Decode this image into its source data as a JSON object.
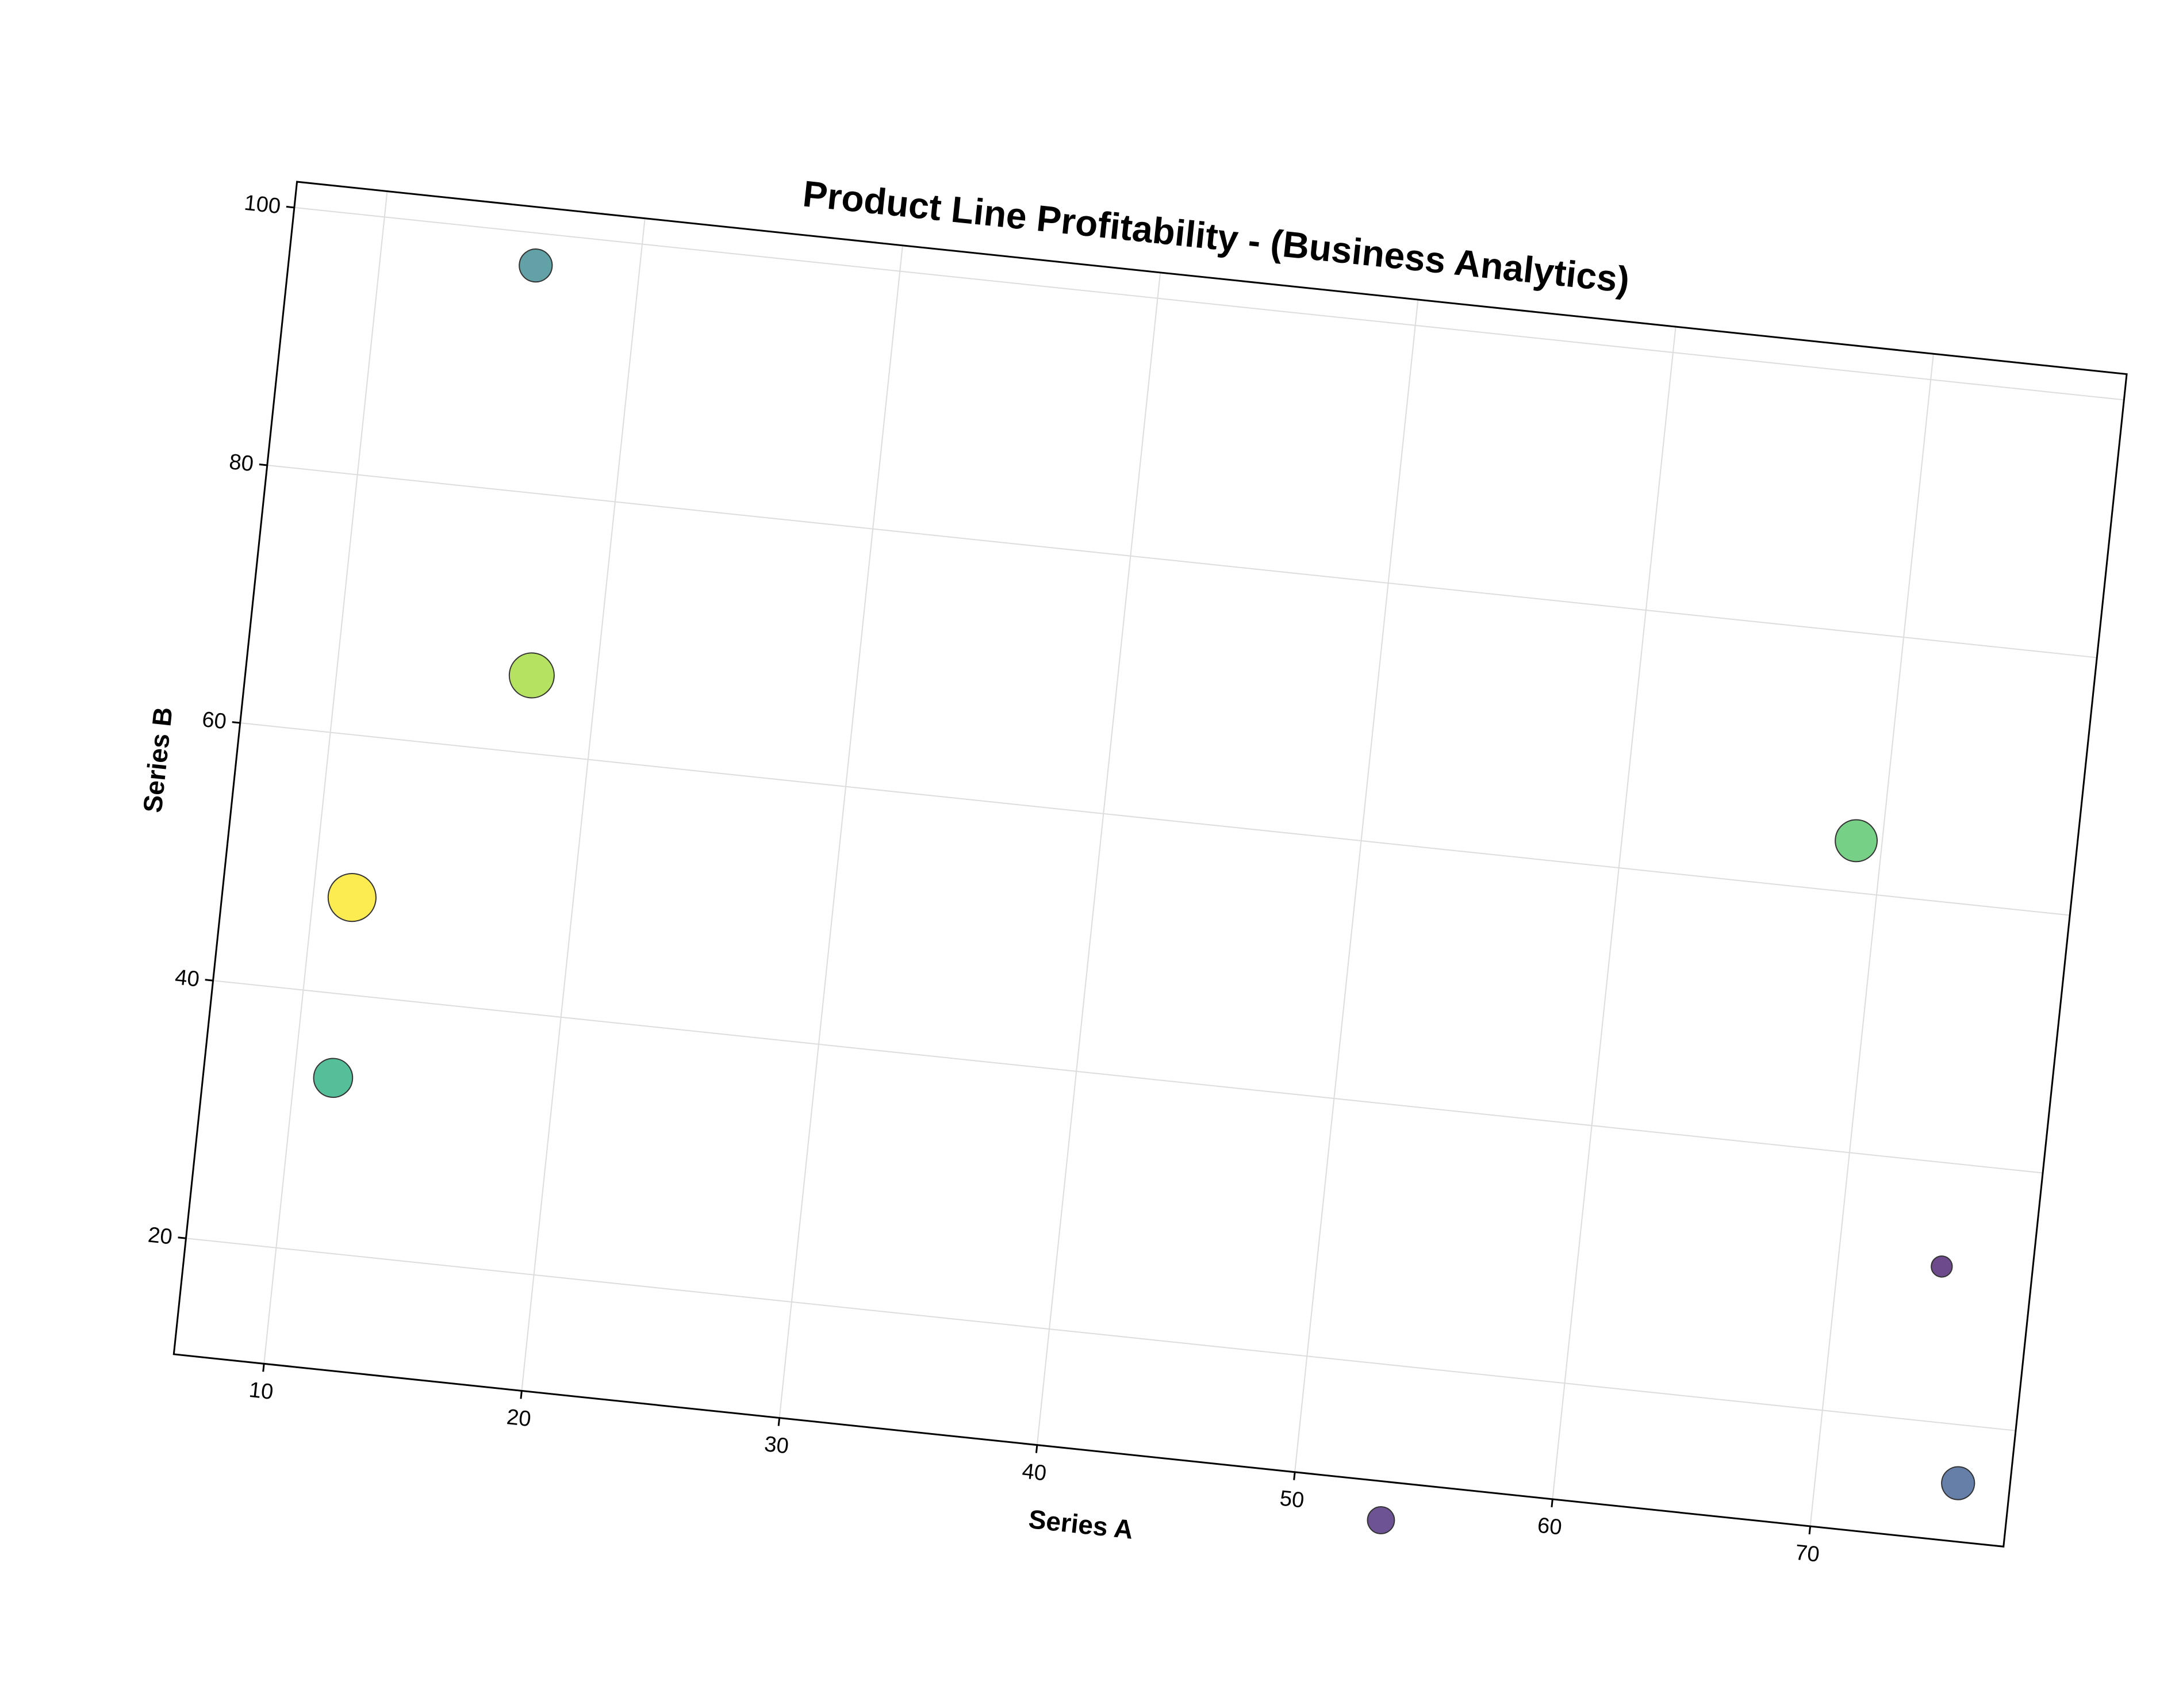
{
  "chart_data": {
    "type": "scatter",
    "title": "Product Line Profitability - (Business Analytics)",
    "xlabel": "Series A",
    "ylabel": "Series B",
    "xlim": [
      6.5,
      77.5
    ],
    "ylim": [
      11,
      102
    ],
    "xticks": [
      10,
      20,
      30,
      40,
      50,
      60,
      70
    ],
    "yticks": [
      20,
      40,
      60,
      80,
      100
    ],
    "grid": true,
    "points": [
      {
        "x": 16,
        "y": 97.5,
        "size": 11,
        "color": "#3b8b91"
      },
      {
        "x": 17.5,
        "y": 66,
        "size": 15,
        "color": "#a4db3a"
      },
      {
        "x": 11.5,
        "y": 47.5,
        "size": 16,
        "color": "#fde725"
      },
      {
        "x": 11.5,
        "y": 33.5,
        "size": 13,
        "color": "#29af7f"
      },
      {
        "x": 69,
        "y": 64,
        "size": 14,
        "color": "#54c568"
      },
      {
        "x": 74,
        "y": 32,
        "size": 7,
        "color": "#481d6f"
      },
      {
        "x": 75.5,
        "y": 15.5,
        "size": 11,
        "color": "#3e5f94"
      },
      {
        "x": 53.5,
        "y": 8,
        "size": 9,
        "color": "#482878"
      }
    ]
  }
}
